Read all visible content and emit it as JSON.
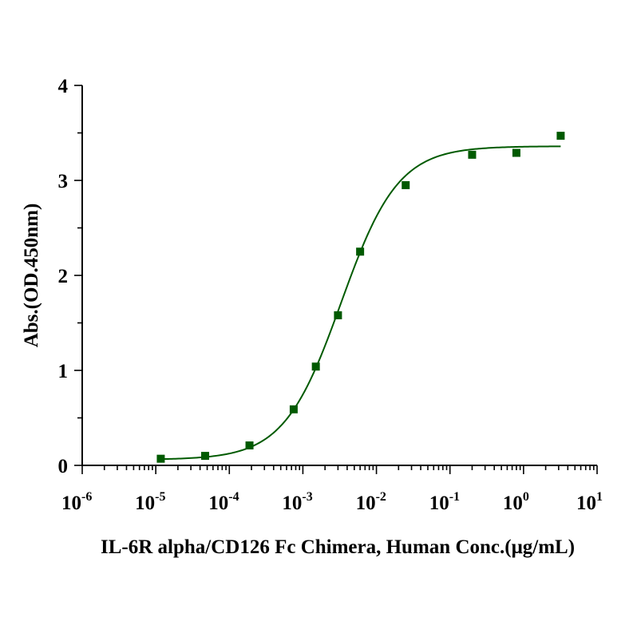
{
  "chart_data": {
    "type": "scatter",
    "xlabel": "IL-6R alpha/CD126 Fc Chimera, Human Conc.(μg/mL)",
    "ylabel": "Abs.(OD.450nm)",
    "x_scale": "log",
    "xlim": [
      1e-06,
      10
    ],
    "ylim": [
      0,
      4
    ],
    "x_ticks": [
      {
        "base": "10",
        "exp": "-6",
        "value": 1e-06
      },
      {
        "base": "10",
        "exp": "-5",
        "value": 1e-05
      },
      {
        "base": "10",
        "exp": "-4",
        "value": 0.0001
      },
      {
        "base": "10",
        "exp": "-3",
        "value": 0.001
      },
      {
        "base": "10",
        "exp": "-2",
        "value": 0.01
      },
      {
        "base": "10",
        "exp": "-1",
        "value": 0.1
      },
      {
        "base": "10",
        "exp": "0",
        "value": 1
      },
      {
        "base": "10",
        "exp": "1",
        "value": 10
      }
    ],
    "y_ticks": [
      "0",
      "1",
      "2",
      "3",
      "4"
    ],
    "grid": false,
    "color": "#005a00",
    "series": [
      {
        "marker": "square",
        "x": [
          1.17e-05,
          4.69e-05,
          0.000188,
          0.00075,
          0.0015,
          0.003,
          0.006,
          0.025,
          0.2,
          0.8,
          3.2
        ],
        "y": [
          0.07,
          0.1,
          0.21,
          0.59,
          1.04,
          1.58,
          2.25,
          2.95,
          3.27,
          3.29,
          3.47
        ]
      }
    ],
    "fit": {
      "type": "4PL",
      "bottom": 0.06,
      "top": 3.36,
      "ec50": 0.0033,
      "hill": 1.12,
      "x_range": [
        1.17e-05,
        3.2
      ]
    }
  }
}
